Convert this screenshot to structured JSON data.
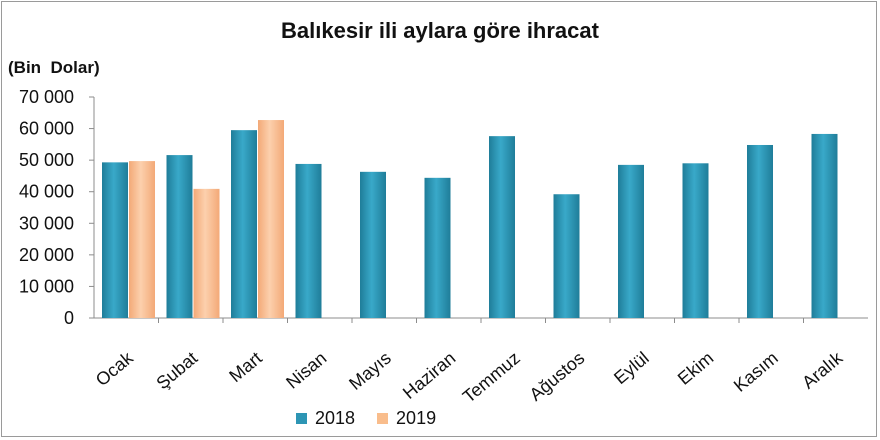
{
  "chart_data": {
    "type": "bar",
    "title": "Balıkesir ili aylara göre ihracat",
    "ylabel": "(Bin  Dolar)",
    "xlabel": "",
    "ylim": [
      0,
      70000
    ],
    "yticks": [
      "0",
      "10 000",
      "20 000",
      "30 000",
      "40 000",
      "50 000",
      "60 000",
      "70 000"
    ],
    "categories": [
      "Ocak",
      "Şubat",
      "Mart",
      "Nisan",
      "Mayıs",
      "Haziran",
      "Temmuz",
      "Ağustos",
      "Eylül",
      "Ekim",
      "Kasım",
      "Aralık"
    ],
    "series": [
      {
        "name": "2018",
        "color": "#2d95b4",
        "values": [
          49300,
          51600,
          59500,
          48800,
          46300,
          44400,
          57600,
          39200,
          48500,
          49000,
          54800,
          58300
        ]
      },
      {
        "name": "2019",
        "color": "#f9bd8c",
        "values": [
          49700,
          40900,
          62700,
          null,
          null,
          null,
          null,
          null,
          null,
          null,
          null,
          null
        ]
      }
    ],
    "legend": "bottom",
    "grid": false
  }
}
